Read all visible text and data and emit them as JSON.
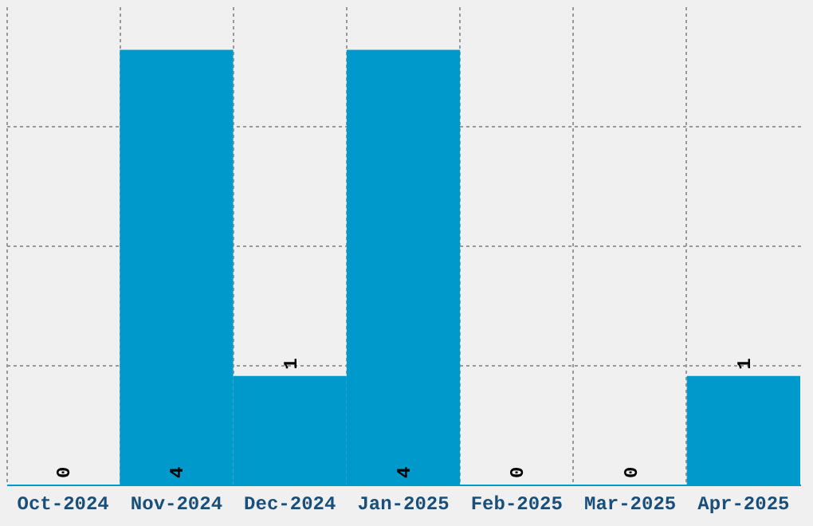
{
  "chart_data": {
    "type": "bar",
    "categories": [
      "Oct-2024",
      "Nov-2024",
      "Dec-2024",
      "Jan-2025",
      "Feb-2025",
      "Mar-2025",
      "Apr-2025"
    ],
    "values": [
      0,
      4,
      1,
      4,
      0,
      0,
      1
    ],
    "color": "#0099cc",
    "data_labels": true,
    "grid": true,
    "tick_labels": "x",
    "ylim": [
      0,
      4.4
    ],
    "yticks": [
      {
        "value": 1.1,
        "label": null
      },
      {
        "value": 2.2,
        "label": null
      },
      {
        "value": 3.3,
        "label": null
      }
    ]
  }
}
